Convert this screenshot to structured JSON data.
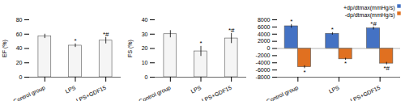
{
  "chart_data": [
    {
      "type": "bar",
      "categories": [
        "Control group",
        "LPS",
        "LPS+GDF15"
      ],
      "values": [
        57,
        44,
        51
      ],
      "errors": [
        3.0,
        2.5,
        4.5
      ],
      "annotations": [
        null,
        "*",
        "*#"
      ],
      "ylabel": "EF (%)",
      "ylim": [
        0,
        80
      ],
      "yticks": [
        0,
        20,
        40,
        60,
        80
      ],
      "color": "#f5f5f5"
    },
    {
      "type": "bar",
      "categories": [
        "Control group",
        "LPS",
        "LPS+GDF15"
      ],
      "values": [
        30,
        18,
        27
      ],
      "errors": [
        2.5,
        3.5,
        3.5
      ],
      "annotations": [
        null,
        "*",
        "*#"
      ],
      "ylabel": "FS (%)",
      "ylim": [
        0,
        40
      ],
      "yticks": [
        0,
        10,
        20,
        30,
        40
      ],
      "color": "#f5f5f5"
    },
    {
      "type": "bar",
      "categories": [
        "Control group",
        "LPS",
        "LPS+GDF15"
      ],
      "series": [
        {
          "name": "+dp/dtmax(mmHg/s)",
          "color": "#4472c4",
          "values": [
            6200,
            4100,
            5600
          ],
          "errors": [
            500,
            350,
            400
          ],
          "annotations": [
            "*",
            "*",
            "*#"
          ]
        },
        {
          "name": "-dp/dtmax(mmHg/s)",
          "color": "#e07020",
          "values": [
            -5200,
            -3000,
            -4200
          ],
          "errors": [
            400,
            300,
            350
          ],
          "annotations": [
            "*",
            "*",
            "*#"
          ]
        }
      ],
      "ylim": [
        -8000,
        8000
      ],
      "yticks": [
        -8000,
        -6000,
        -4000,
        -2000,
        0,
        2000,
        4000,
        6000,
        8000
      ],
      "legend": "upper right"
    }
  ]
}
